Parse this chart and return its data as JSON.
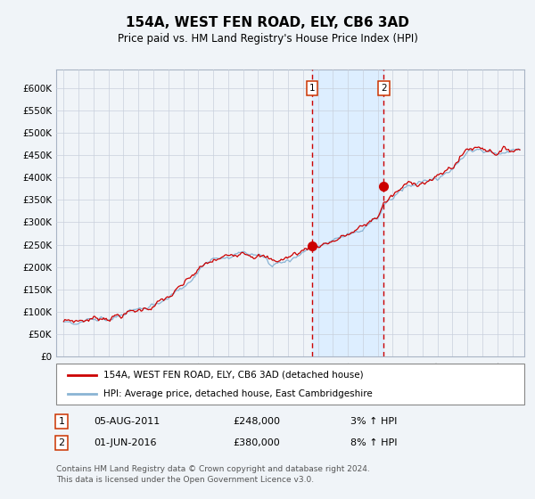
{
  "title": "154A, WEST FEN ROAD, ELY, CB6 3AD",
  "subtitle": "Price paid vs. HM Land Registry's House Price Index (HPI)",
  "legend_line1": "154A, WEST FEN ROAD, ELY, CB6 3AD (detached house)",
  "legend_line2": "HPI: Average price, detached house, East Cambridgeshire",
  "annotation1_date": "05-AUG-2011",
  "annotation1_price": "£248,000",
  "annotation1_hpi": "3% ↑ HPI",
  "annotation1_year": 2011.6,
  "annotation1_value": 248000,
  "annotation2_date": "01-JUN-2016",
  "annotation2_price": "£380,000",
  "annotation2_hpi": "8% ↑ HPI",
  "annotation2_year": 2016.4,
  "annotation2_value": 380000,
  "yticks": [
    0,
    50000,
    100000,
    150000,
    200000,
    250000,
    300000,
    350000,
    400000,
    450000,
    500000,
    550000,
    600000
  ],
  "ylim": [
    0,
    640000
  ],
  "xlim_start": 1994.5,
  "xlim_end": 2025.8,
  "red_line_color": "#cc0000",
  "blue_line_color": "#8ab4d4",
  "shade_color": "#ddeeff",
  "grid_color": "#c8d0dc",
  "footer": "Contains HM Land Registry data © Crown copyright and database right 2024.\nThis data is licensed under the Open Government Licence v3.0."
}
